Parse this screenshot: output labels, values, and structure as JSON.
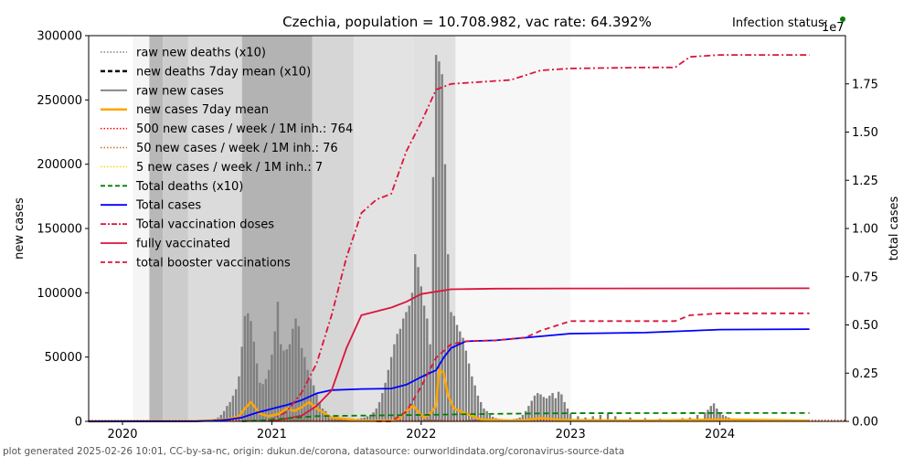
{
  "chart_data": {
    "type": "bar",
    "title": "Czechia, population = 10.708.982, vac rate: 64.392%",
    "status_label": "Infection status:",
    "status_color": "#008000",
    "right_axis_offset_label": "1e7",
    "xlabel": "",
    "ylabel": "new cases",
    "ylabel_right": "total cases",
    "xlim": [
      2019.77,
      2024.85
    ],
    "ylim": [
      0,
      300000
    ],
    "ylim_right": [
      0,
      20000000
    ],
    "x_ticks": [
      {
        "value": 2020,
        "label": "2020"
      },
      {
        "value": 2021,
        "label": "2021"
      },
      {
        "value": 2022,
        "label": "2022"
      },
      {
        "value": 2023,
        "label": "2023"
      },
      {
        "value": 2024,
        "label": "2024"
      }
    ],
    "y_ticks": [
      {
        "value": 0,
        "label": "0"
      },
      {
        "value": 50000,
        "label": "50000"
      },
      {
        "value": 100000,
        "label": "100000"
      },
      {
        "value": 150000,
        "label": "150000"
      },
      {
        "value": 200000,
        "label": "200000"
      },
      {
        "value": 250000,
        "label": "250000"
      },
      {
        "value": 300000,
        "label": "300000"
      }
    ],
    "y_ticks_right": [
      {
        "value": 0,
        "label": "0.00"
      },
      {
        "value": 2500000,
        "label": "0.25"
      },
      {
        "value": 5000000,
        "label": "0.50"
      },
      {
        "value": 7500000,
        "label": "0.75"
      },
      {
        "value": 10000000,
        "label": "1.00"
      },
      {
        "value": 12500000,
        "label": "1.25"
      },
      {
        "value": 15000000,
        "label": "1.50"
      },
      {
        "value": 17500000,
        "label": "1.75"
      }
    ],
    "legend_position": "upper-left",
    "legend": [
      {
        "label": "raw new deaths (x10)",
        "color": "#808080",
        "style": "dotted"
      },
      {
        "label": "new deaths 7day mean (x10)",
        "color": "#000000",
        "style": "dashed-thick"
      },
      {
        "label": "raw new cases",
        "color": "#808080",
        "style": "solid"
      },
      {
        "label": "new cases 7day mean",
        "color": "#ffa500",
        "style": "solid-thick"
      },
      {
        "label": "500 new cases / week / 1M inh.: 764",
        "color": "#ff0000",
        "style": "dotted"
      },
      {
        "label": "50 new cases / week / 1M inh.: 76",
        "color": "#d2691e",
        "style": "dotted"
      },
      {
        "label": "5 new cases / week / 1M inh.: 7",
        "color": "#ffd700",
        "style": "dotted"
      },
      {
        "label": "Total deaths (x10)",
        "color": "#008000",
        "style": "dashed"
      },
      {
        "label": "Total cases",
        "color": "#0000ff",
        "style": "solid"
      },
      {
        "label": "Total vaccination doses",
        "color": "#dc143c",
        "style": "dashdot"
      },
      {
        "label": "fully vaccinated",
        "color": "#dc143c",
        "style": "solid"
      },
      {
        "label": "total booster vaccinations",
        "color": "#dc143c",
        "style": "dashed"
      }
    ],
    "thresholds": [
      764,
      76,
      7
    ],
    "background_bands": [
      {
        "x0": 2020.07,
        "x1": 2020.18,
        "shade": 0.96
      },
      {
        "x0": 2020.18,
        "x1": 2020.27,
        "shade": 0.72
      },
      {
        "x0": 2020.27,
        "x1": 2020.44,
        "shade": 0.8
      },
      {
        "x0": 2020.44,
        "x1": 2020.8,
        "shade": 0.86
      },
      {
        "x0": 2020.8,
        "x1": 2021.27,
        "shade": 0.7
      },
      {
        "x0": 2021.27,
        "x1": 2021.55,
        "shade": 0.84
      },
      {
        "x0": 2021.55,
        "x1": 2021.95,
        "shade": 0.89
      },
      {
        "x0": 2021.95,
        "x1": 2022.23,
        "shade": 0.88
      },
      {
        "x0": 2022.23,
        "x1": 2023.0,
        "shade": 0.97
      }
    ],
    "series": [
      {
        "name": "raw new cases",
        "type": "bar",
        "color": "#808080",
        "x": [
          2020.6,
          2020.62,
          2020.64,
          2020.66,
          2020.68,
          2020.7,
          2020.72,
          2020.74,
          2020.76,
          2020.78,
          2020.8,
          2020.82,
          2020.84,
          2020.86,
          2020.88,
          2020.9,
          2020.92,
          2020.94,
          2020.96,
          2020.98,
          2021.0,
          2021.02,
          2021.04,
          2021.06,
          2021.08,
          2021.1,
          2021.12,
          2021.14,
          2021.16,
          2021.18,
          2021.2,
          2021.22,
          2021.24,
          2021.26,
          2021.28,
          2021.3,
          2021.32,
          2021.34,
          2021.36,
          2021.38,
          2021.4,
          2021.42,
          2021.44,
          2021.46,
          2021.48,
          2021.5,
          2021.52,
          2021.54,
          2021.56,
          2021.58,
          2021.6,
          2021.62,
          2021.64,
          2021.66,
          2021.68,
          2021.7,
          2021.72,
          2021.74,
          2021.76,
          2021.78,
          2021.8,
          2021.82,
          2021.84,
          2021.86,
          2021.88,
          2021.9,
          2021.92,
          2021.94,
          2021.96,
          2021.98,
          2022.0,
          2022.02,
          2022.04,
          2022.06,
          2022.08,
          2022.1,
          2022.12,
          2022.14,
          2022.16,
          2022.18,
          2022.2,
          2022.22,
          2022.24,
          2022.26,
          2022.28,
          2022.3,
          2022.32,
          2022.34,
          2022.36,
          2022.38,
          2022.4,
          2022.42,
          2022.44,
          2022.46,
          2022.48,
          2022.5,
          2022.52,
          2022.54,
          2022.56,
          2022.58,
          2022.6,
          2022.62,
          2022.64,
          2022.66,
          2022.68,
          2022.7,
          2022.72,
          2022.74,
          2022.76,
          2022.78,
          2022.8,
          2022.82,
          2022.84,
          2022.86,
          2022.88,
          2022.9,
          2022.92,
          2022.94,
          2022.96,
          2022.98,
          2023.0,
          2023.05,
          2023.1,
          2023.15,
          2023.2,
          2023.25,
          2023.3,
          2023.4,
          2023.5,
          2023.6,
          2023.7,
          2023.75,
          2023.8,
          2023.85,
          2023.9,
          2023.92,
          2023.94,
          2023.96,
          2023.98,
          2024.0,
          2024.02,
          2024.04,
          2024.06,
          2024.1,
          2024.2,
          2024.3
        ],
        "values": [
          1000,
          2000,
          3000,
          5000,
          8000,
          12000,
          15000,
          20000,
          25000,
          35000,
          58000,
          82000,
          84000,
          78000,
          62000,
          45000,
          30000,
          29000,
          33000,
          40000,
          52000,
          70000,
          93000,
          60000,
          55000,
          56000,
          60000,
          72000,
          80000,
          74000,
          57000,
          50000,
          40000,
          33000,
          28000,
          22000,
          15000,
          10000,
          8000,
          5000,
          3500,
          2500,
          2000,
          1500,
          1200,
          1000,
          1000,
          1200,
          1500,
          2000,
          2500,
          3000,
          4000,
          5000,
          7000,
          10000,
          15000,
          22000,
          30000,
          40000,
          50000,
          60000,
          68000,
          72000,
          80000,
          85000,
          90000,
          100000,
          130000,
          120000,
          105000,
          90000,
          80000,
          60000,
          190000,
          285000,
          280000,
          270000,
          200000,
          130000,
          85000,
          82000,
          75000,
          70000,
          65000,
          55000,
          45000,
          35000,
          28000,
          20000,
          15000,
          10000,
          8000,
          5000,
          3500,
          2500,
          2000,
          1800,
          1500,
          1500,
          1500,
          1800,
          2200,
          3000,
          5000,
          8000,
          12000,
          16000,
          20000,
          22000,
          21000,
          19000,
          18000,
          20000,
          22000,
          18000,
          23000,
          21000,
          15000,
          10000,
          6000,
          4000,
          3000,
          4000,
          5000,
          6000,
          4000,
          3000,
          2500,
          2000,
          1500,
          2500,
          3000,
          5000,
          7000,
          9000,
          12000,
          14000,
          10000,
          7000,
          5000,
          4000,
          3000,
          2000,
          1500,
          1000
        ]
      },
      {
        "name": "new cases 7day mean",
        "type": "line",
        "color": "#ffa500",
        "x": [
          2019.77,
          2020.5,
          2020.7,
          2020.78,
          2020.82,
          2020.86,
          2020.88,
          2020.92,
          2020.98,
          2021.05,
          2021.1,
          2021.15,
          2021.2,
          2021.25,
          2021.3,
          2021.4,
          2021.6,
          2021.8,
          2021.86,
          2021.9,
          2021.95,
          2021.99,
          2022.02,
          2022.06,
          2022.1,
          2022.12,
          2022.15,
          2022.18,
          2022.22,
          2022.3,
          2022.4,
          2022.6,
          2022.7,
          2022.8,
          2022.9,
          2023.0,
          2023.5,
          2024.0,
          2024.6
        ],
        "values": [
          0,
          200,
          1500,
          4000,
          10000,
          15000,
          12000,
          6000,
          4000,
          6000,
          10000,
          8000,
          11000,
          15000,
          10000,
          3000,
          500,
          400,
          3000,
          8000,
          12000,
          6000,
          3000,
          6000,
          12000,
          40000,
          38000,
          20000,
          10000,
          6000,
          1500,
          500,
          1000,
          2500,
          1500,
          1000,
          500,
          1500,
          500
        ]
      },
      {
        "name": "Total cases",
        "type": "line",
        "axis": "right",
        "color": "#0000ff",
        "x": [
          2019.77,
          2020.5,
          2020.6,
          2020.7,
          2020.8,
          2020.9,
          2021.0,
          2021.1,
          2021.2,
          2021.3,
          2021.4,
          2021.6,
          2021.8,
          2021.9,
          2022.0,
          2022.05,
          2022.1,
          2022.15,
          2022.2,
          2022.3,
          2022.5,
          2023.0,
          2023.5,
          2024.0,
          2024.6
        ],
        "values": [
          0,
          10000,
          30000,
          80000,
          200000,
          450000,
          650000,
          850000,
          1100000,
          1450000,
          1620000,
          1680000,
          1700000,
          1900000,
          2300000,
          2480000,
          2650000,
          3300000,
          3800000,
          4150000,
          4200000,
          4550000,
          4600000,
          4760000,
          4780000
        ]
      },
      {
        "name": "Total vaccination doses",
        "type": "line",
        "axis": "right",
        "color": "#dc143c",
        "style": "dashdot",
        "x": [
          2020.98,
          2021.1,
          2021.2,
          2021.3,
          2021.4,
          2021.5,
          2021.6,
          2021.7,
          2021.8,
          2021.9,
          2022.0,
          2022.1,
          2022.2,
          2022.4,
          2022.6,
          2022.8,
          2023.0,
          2023.5,
          2023.7,
          2023.8,
          2024.0,
          2024.6
        ],
        "values": [
          0,
          500000,
          1500000,
          3000000,
          5500000,
          8500000,
          10800000,
          11500000,
          11800000,
          14000000,
          15500000,
          17200000,
          17500000,
          17600000,
          17700000,
          18200000,
          18300000,
          18350000,
          18350000,
          18900000,
          19000000,
          19000000
        ]
      },
      {
        "name": "fully vaccinated",
        "type": "line",
        "axis": "right",
        "color": "#dc143c",
        "style": "solid",
        "x": [
          2021.0,
          2021.2,
          2021.3,
          2021.4,
          2021.5,
          2021.6,
          2021.8,
          2021.9,
          2022.0,
          2022.2,
          2022.5,
          2023.0,
          2024.6
        ],
        "values": [
          0,
          300000,
          800000,
          1600000,
          3800000,
          5500000,
          5900000,
          6200000,
          6600000,
          6850000,
          6880000,
          6890000,
          6900000
        ]
      },
      {
        "name": "total booster vaccinations",
        "type": "line",
        "axis": "right",
        "color": "#dc143c",
        "style": "dashed",
        "x": [
          2021.7,
          2021.8,
          2021.9,
          2022.0,
          2022.1,
          2022.2,
          2022.3,
          2022.5,
          2022.7,
          2022.8,
          2023.0,
          2023.5,
          2023.7,
          2023.8,
          2024.0,
          2024.6
        ],
        "values": [
          0,
          0,
          500000,
          1800000,
          3300000,
          4000000,
          4150000,
          4200000,
          4350000,
          4700000,
          5200000,
          5200000,
          5200000,
          5500000,
          5600000,
          5600000
        ]
      },
      {
        "name": "Total deaths (x10)",
        "type": "line",
        "axis": "right",
        "color": "#008000",
        "style": "dashed",
        "x": [
          2020.8,
          2020.95,
          2021.1,
          2021.3,
          2021.6,
          2022.0,
          2022.3,
          2022.6,
          2023.0,
          2023.5,
          2024.0,
          2024.6
        ],
        "values": [
          0,
          60000,
          150000,
          270000,
          300000,
          330000,
          370000,
          400000,
          420000,
          425000,
          430000,
          432000
        ]
      }
    ]
  },
  "footer": {
    "text": "plot generated 2025-02-26 10:01, CC-by-sa-nc, origin: dukun.de/corona, datasource: ourworldindata.org/coronavirus-source-data"
  }
}
